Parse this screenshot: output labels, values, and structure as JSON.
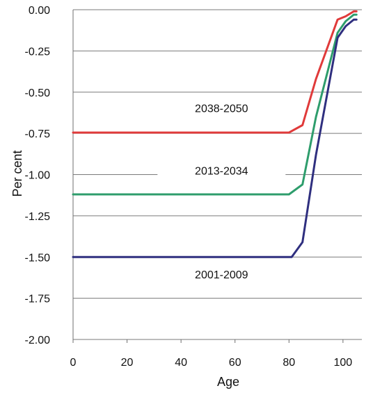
{
  "chart_data": {
    "type": "line",
    "title": "",
    "xlabel": "Age",
    "ylabel": "Per cent",
    "xlim": [
      0,
      107
    ],
    "ylim": [
      -2.0,
      0.0
    ],
    "x_ticks": [
      0,
      20,
      40,
      60,
      80,
      100
    ],
    "y_ticks": [
      0.0,
      -0.25,
      -0.5,
      -0.75,
      -1.0,
      -1.25,
      -1.5,
      -1.75,
      -2.0
    ],
    "x_tick_labels": [
      "0",
      "20",
      "40",
      "60",
      "80",
      "100"
    ],
    "y_tick_labels": [
      "0.00",
      "-0.25",
      "-0.50",
      "-0.75",
      "-1.00",
      "-1.25",
      "-1.50",
      "-1.75",
      "-2.00"
    ],
    "grid": "horizontal",
    "series": [
      {
        "name": "2038-2050",
        "color": "#e03a3a",
        "points": [
          [
            0,
            -0.745
          ],
          [
            80,
            -0.745
          ],
          [
            85,
            -0.7
          ],
          [
            90,
            -0.42
          ],
          [
            98,
            -0.06
          ],
          [
            101,
            -0.04
          ],
          [
            104,
            -0.01
          ],
          [
            105,
            -0.01
          ]
        ]
      },
      {
        "name": "2013-2034",
        "color": "#2e9d6c",
        "points": [
          [
            0,
            -1.12
          ],
          [
            80,
            -1.12
          ],
          [
            85,
            -1.06
          ],
          [
            90,
            -0.65
          ],
          [
            98,
            -0.14
          ],
          [
            101,
            -0.07
          ],
          [
            104,
            -0.03
          ],
          [
            105,
            -0.03
          ]
        ]
      },
      {
        "name": "2001-2009",
        "color": "#2f2f7f",
        "points": [
          [
            0,
            -1.5
          ],
          [
            81,
            -1.5
          ],
          [
            85,
            -1.41
          ],
          [
            90,
            -0.88
          ],
          [
            98,
            -0.17
          ],
          [
            101,
            -0.1
          ],
          [
            104,
            -0.06
          ],
          [
            105,
            -0.06
          ]
        ]
      }
    ],
    "series_labels": [
      {
        "text": "2038-2050",
        "x": 55,
        "y": -0.62
      },
      {
        "text": "2013-2034",
        "x": 55,
        "y": -1.0
      },
      {
        "text": "2001-2009",
        "x": 55,
        "y": -1.63
      }
    ]
  }
}
